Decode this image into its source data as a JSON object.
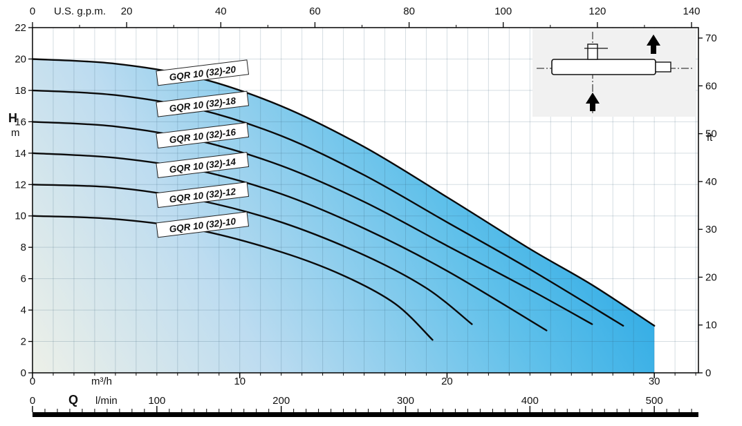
{
  "chart_data": {
    "type": "line",
    "axes": {
      "top": {
        "unit": "U.S. g.p.m.",
        "ticks": [
          0,
          20,
          40,
          60,
          80,
          100,
          120,
          140
        ]
      },
      "left": {
        "label": "H",
        "unit": "m",
        "ticks": [
          22,
          20,
          18,
          16,
          14,
          12,
          10,
          8,
          6,
          4,
          2,
          0
        ],
        "range": [
          0,
          22
        ]
      },
      "right": {
        "unit": "ft",
        "ticks": [
          70,
          60,
          50,
          40,
          30,
          20,
          10,
          0
        ]
      },
      "bottom_primary": {
        "unit": "m³/h",
        "ticks": [
          0,
          10,
          20,
          30
        ],
        "range": [
          0,
          32.13
        ]
      },
      "bottom_secondary": {
        "label": "Q",
        "unit": "l/min",
        "ticks": [
          0,
          100,
          200,
          300,
          400,
          500
        ]
      }
    },
    "series": [
      {
        "name": "GQR 10 (32)-20",
        "points": [
          [
            0,
            20
          ],
          [
            4,
            19.7
          ],
          [
            8,
            18.8
          ],
          [
            12,
            17.0
          ],
          [
            16,
            14.4
          ],
          [
            20,
            11.2
          ],
          [
            24,
            7.9
          ],
          [
            27,
            5.6
          ],
          [
            30,
            3.0
          ]
        ]
      },
      {
        "name": "GQR 10 (32)-18",
        "points": [
          [
            0,
            18
          ],
          [
            4,
            17.7
          ],
          [
            8,
            16.8
          ],
          [
            12,
            15.1
          ],
          [
            16,
            12.6
          ],
          [
            20,
            9.6
          ],
          [
            24,
            6.6
          ],
          [
            28.5,
            3.0
          ]
        ]
      },
      {
        "name": "GQR 10 (32)-16",
        "points": [
          [
            0,
            16
          ],
          [
            4,
            15.7
          ],
          [
            8,
            14.8
          ],
          [
            12,
            13.2
          ],
          [
            16,
            10.9
          ],
          [
            20,
            8.1
          ],
          [
            24,
            5.3
          ],
          [
            27,
            3.1
          ]
        ]
      },
      {
        "name": "GQR 10 (32)-14",
        "points": [
          [
            0,
            14
          ],
          [
            4,
            13.7
          ],
          [
            8,
            12.9
          ],
          [
            12,
            11.4
          ],
          [
            16,
            9.2
          ],
          [
            20,
            6.5
          ],
          [
            24.8,
            2.7
          ]
        ]
      },
      {
        "name": "GQR 10 (32)-12",
        "points": [
          [
            0,
            12
          ],
          [
            4,
            11.8
          ],
          [
            8,
            11.0
          ],
          [
            12,
            9.6
          ],
          [
            16,
            7.5
          ],
          [
            19,
            5.4
          ],
          [
            21.2,
            3.1
          ]
        ]
      },
      {
        "name": "GQR 10 (32)-10",
        "points": [
          [
            0,
            10
          ],
          [
            4,
            9.8
          ],
          [
            8,
            9.1
          ],
          [
            12,
            7.7
          ],
          [
            15,
            6.2
          ],
          [
            17.5,
            4.4
          ],
          [
            19.3,
            2.1
          ]
        ]
      }
    ],
    "style": {
      "fill_gradient": [
        "#edf0e8",
        "#bddcf0",
        "#5fc0ea",
        "#2fabe5"
      ],
      "gradient_offsets": [
        0,
        35,
        75,
        100
      ],
      "curve_color": "#0a0a0a",
      "grid_color": "rgba(45,85,110,0.20)",
      "frame_color": "#000000",
      "inset_bg": "#f1f1f1"
    }
  },
  "inset": {
    "name": "pump-installation-schematic"
  }
}
